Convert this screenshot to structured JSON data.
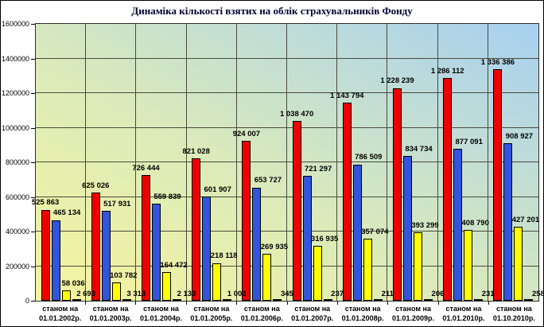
{
  "chart": {
    "title": "Динаміка кількості взятих на облік страхувальників Фонду"
  },
  "chart_data": {
    "type": "bar",
    "title": "Динаміка кількості взятих на облік страхувальників Фонду",
    "xlabel": "",
    "ylabel": "",
    "ylim": [
      0,
      1600000
    ],
    "ytick_step": 200000,
    "ytick_labels": [
      "0",
      "200000",
      "400000",
      "600000",
      "800000",
      "1000000",
      "1200000",
      "1400000",
      "1600000"
    ],
    "grid": true,
    "legend": false,
    "categories": [
      {
        "prefix": "станом на",
        "date": "01.01.2002р."
      },
      {
        "prefix": "станом на",
        "date": "01.01.2003р."
      },
      {
        "prefix": "станом на",
        "date": "01.01.2004р."
      },
      {
        "prefix": "станом на",
        "date": "01.01.2005р."
      },
      {
        "prefix": "станом на",
        "date": "01.01.2006р."
      },
      {
        "prefix": "станом на",
        "date": "01.01.2007р."
      },
      {
        "prefix": "станом на",
        "date": "01.01.2008р."
      },
      {
        "prefix": "станом на",
        "date": "01.01.2009р."
      },
      {
        "prefix": "станом на",
        "date": "01.01.2010р."
      },
      {
        "prefix": "станом на",
        "date": "01.10.2010р."
      }
    ],
    "series": [
      {
        "name": "red-series",
        "color": "#ee0000",
        "values": [
          525863,
          625026,
          726444,
          821028,
          924007,
          1038470,
          1143794,
          1228239,
          1286112,
          1336386
        ],
        "labels": [
          "525 863",
          "625 026",
          "726 444",
          "821 028",
          "924 007",
          "1 038 470",
          "1 143 794",
          "1 228 239",
          "1 286 112",
          "1 336 386"
        ]
      },
      {
        "name": "blue-series",
        "color": "#3355dd",
        "values": [
          465134,
          517931,
          559839,
          601907,
          653727,
          721297,
          786509,
          834734,
          877091,
          908927
        ],
        "labels": [
          "465 134",
          "517 931",
          "559 839",
          "601 907",
          "653 727",
          "721 297",
          "786 509",
          "834 734",
          "877 091",
          "908 927"
        ]
      },
      {
        "name": "yellow-series",
        "color": "#ffff00",
        "values": [
          58036,
          103782,
          164472,
          218118,
          269935,
          316935,
          357074,
          393299,
          408790,
          427201
        ],
        "labels": [
          "58 036",
          "103 782",
          "164 472",
          "218 118",
          "269 935",
          "316 935",
          "357 074",
          "393 299",
          "408 790",
          "427 201"
        ]
      },
      {
        "name": "cream-series",
        "color": "#ffffcc",
        "values": [
          2693,
          3313,
          2133,
          1003,
          345,
          237,
          211,
          206,
          231,
          258
        ],
        "labels": [
          "2 693",
          "3 313",
          "2 133",
          "1 003",
          "345",
          "237",
          "211",
          "206",
          "231",
          "258"
        ]
      }
    ],
    "colors": {
      "plot_gradient_bottom_left": "#f6f49e",
      "plot_gradient_top_right": "#a7d0f1",
      "gridline": "#4a4a3c",
      "bar_border": "#000000",
      "title_text": "#000030"
    }
  }
}
